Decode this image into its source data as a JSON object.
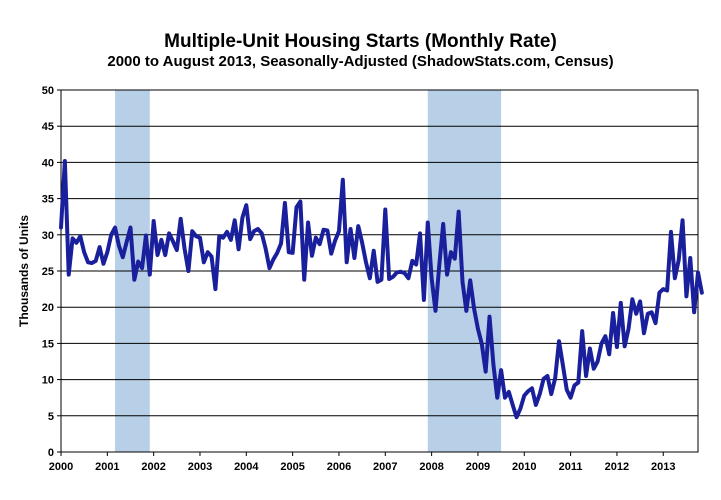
{
  "chart_data": {
    "type": "line",
    "title": "Multiple-Unit Housing Starts (Monthly Rate)",
    "subtitle": "2000 to August 2013, Seasonally-Adjusted (ShadowStats.com, Census)",
    "ylabel": "Thousands of Units",
    "xlabel": "",
    "ylim": [
      0,
      50
    ],
    "yticks": [
      0,
      5,
      10,
      15,
      20,
      25,
      30,
      35,
      40,
      45,
      50
    ],
    "xlim": [
      2000.0,
      2013.75
    ],
    "xticks": [
      "2000",
      "2001",
      "2002",
      "2003",
      "2004",
      "2005",
      "2006",
      "2007",
      "2008",
      "2009",
      "2010",
      "2011",
      "2012",
      "2013"
    ],
    "grid": "horizontal",
    "colors": {
      "line": "#1a1f9c",
      "shade": "#b8cfe8"
    },
    "recessions": [
      {
        "start": "2001-03",
        "end": "2001-11"
      },
      {
        "start": "2007-12",
        "end": "2009-06"
      }
    ],
    "series": [
      {
        "x_start": "2000-01",
        "values": [
          31,
          40.2,
          24.5,
          29.5,
          28.9,
          29.8,
          27.6,
          26.2,
          26.1,
          26.4,
          28.3,
          26.0,
          27.6,
          30.0,
          31.0,
          28.5,
          26.9,
          29.0,
          31.0,
          23.8,
          26.3,
          25.4,
          29.9,
          24.5,
          31.9,
          27.2,
          29.3,
          27.2,
          30.2,
          29.1,
          27.9,
          32.2,
          28.1,
          25.0,
          30.5,
          29.8,
          29.6,
          26.2,
          27.6,
          27.0,
          22.5,
          29.8,
          29.6,
          30.4,
          29.3,
          32.0,
          28.0,
          32.4,
          34.1,
          29.4,
          30.5,
          30.8,
          30.2,
          28.1,
          25.4,
          26.6,
          27.5,
          28.8,
          34.4,
          27.6,
          27.5,
          33.8,
          34.6,
          23.8,
          31.7,
          27.1,
          29.6,
          28.7,
          30.7,
          30.6,
          27.4,
          29.2,
          30.5,
          37.6,
          26.2,
          30.8,
          26.8,
          31.2,
          28.9,
          26.2,
          24.0,
          27.8,
          23.5,
          23.8,
          33.5,
          23.9,
          24.2,
          24.8,
          24.9,
          24.7,
          24.0,
          26.4,
          25.9,
          30.2,
          21.0,
          31.7,
          24.0,
          19.5,
          25.9,
          31.5,
          24.5,
          27.6,
          26.7,
          33.2,
          23.5,
          19.5,
          23.7,
          19.8,
          17.0,
          14.9,
          11.1,
          18.7,
          12.1,
          7.5,
          11.3,
          7.5,
          8.3,
          6.5,
          4.8,
          6.0,
          7.8,
          8.4,
          8.8,
          6.5,
          8.0,
          10.1,
          10.5,
          8.0,
          10.2,
          15.3,
          12.0,
          8.6,
          7.5,
          9.2,
          9.6,
          16.7,
          10.5,
          14.3,
          11.5,
          12.5,
          15.0,
          16.0,
          13.5,
          19.2,
          14.5,
          20.6,
          14.6,
          17.0,
          21.1,
          19.1,
          20.8,
          16.4,
          19.1,
          19.3,
          17.8,
          22.0,
          22.5,
          22.3,
          30.4,
          24.0,
          26.5,
          32.0,
          21.5,
          26.8,
          19.3,
          24.8,
          22.0
        ]
      }
    ]
  }
}
